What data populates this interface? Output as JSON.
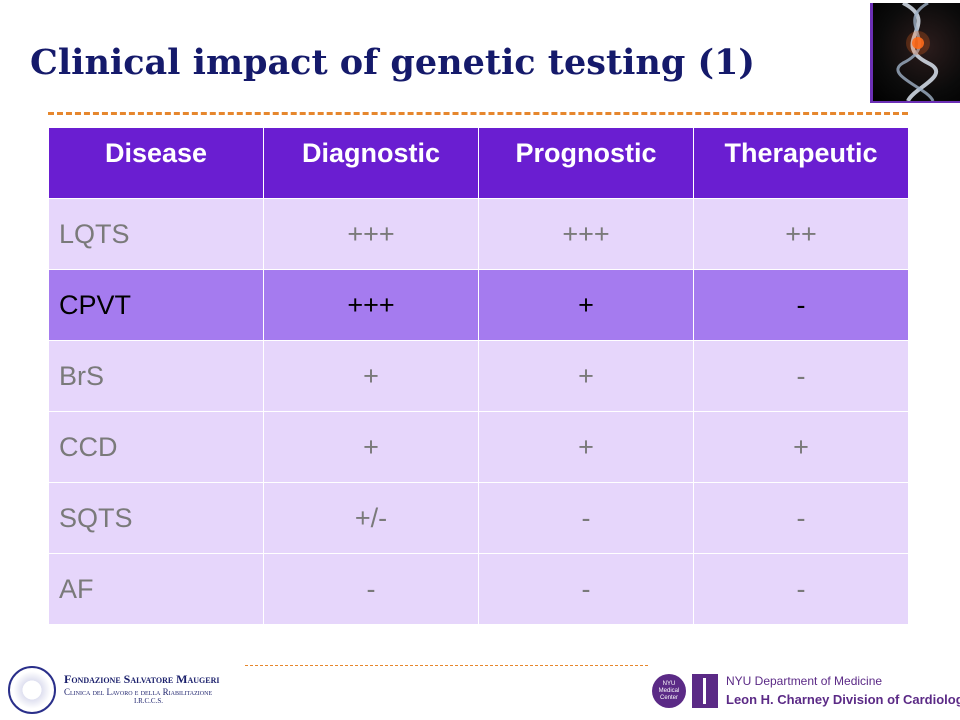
{
  "slide": {
    "title": "Clinical impact of genetic testing (1)"
  },
  "table": {
    "headers": [
      "Disease",
      "Diagnostic",
      "Prognostic",
      "Therapeutic"
    ],
    "rows": [
      {
        "disease": "LQTS",
        "diagnostic": "+++",
        "prognostic": "+++",
        "therapeutic": "++"
      },
      {
        "disease": "CPVT",
        "diagnostic": "+++",
        "prognostic": "+",
        "therapeutic": "-"
      },
      {
        "disease": "BrS",
        "diagnostic": "+",
        "prognostic": "+",
        "therapeutic": "-"
      },
      {
        "disease": "CCD",
        "diagnostic": "+",
        "prognostic": "+",
        "therapeutic": "+"
      },
      {
        "disease": "SQTS",
        "diagnostic": "+/-",
        "prognostic": "-",
        "therapeutic": "-"
      },
      {
        "disease": "AF",
        "diagnostic": "-",
        "prognostic": "-",
        "therapeutic": "-"
      }
    ]
  },
  "footer": {
    "left_logo": {
      "name": "Fondazione Salvatore Maugeri",
      "subtitle": "Clinica del Lavoro e della Riabilitazione",
      "tag": "I.R.C.C.S."
    },
    "right_logo": {
      "badge": "NYU Medical Center",
      "department": "NYU Department of Medicine",
      "division": "Leon H. Charney Division of Cardiology"
    }
  },
  "colors": {
    "title": "#151a6b",
    "header_bg": "#6a1ed1",
    "row_bg": "#e6d6fb",
    "highlight_bg": "#a57bef",
    "dash": "#e6872d"
  }
}
